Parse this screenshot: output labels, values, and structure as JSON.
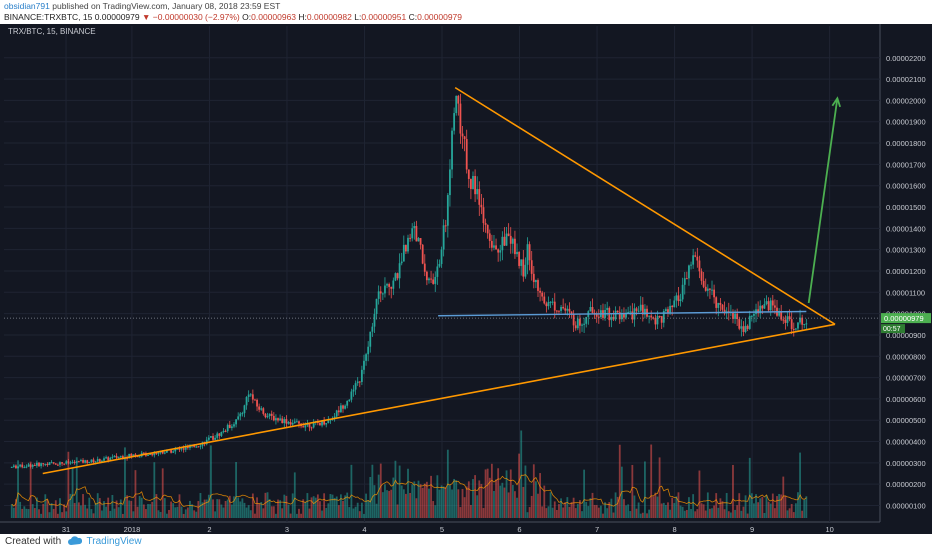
{
  "header": {
    "author": "obsidian791",
    "published": "published on TradingView.com, January 08, 2018 23:59 EST",
    "symbol": "BINANCE:TRXBTC, 15",
    "price": "0.00000979",
    "direction_glyph": "▼",
    "change": "−0.00000030 (−2.97%)",
    "o_label": "O:",
    "o_value": "0.00000963",
    "h_label": "H:",
    "h_value": "0.00000982",
    "l_label": "L:",
    "l_value": "0.00000951",
    "c_label": "C:",
    "c_value": "0.00000979"
  },
  "footer": {
    "created_with": "Created with",
    "brand": "TradingView"
  },
  "chart_data": {
    "type": "candlestick",
    "title": "TRX/BTC, 15, BINANCE",
    "ylim": [
      1e-07,
      2.25e-06
    ],
    "y_ticks": [
      1e-07,
      2e-07,
      3e-07,
      4e-07,
      5e-07,
      6e-07,
      7e-07,
      8e-07,
      9e-07,
      1e-06,
      1.1e-06,
      1.2e-06,
      1.3e-06,
      1.4e-06,
      1.5e-06,
      1.6e-06,
      1.7e-06,
      1.8e-06,
      1.9e-06,
      2e-06,
      2.1e-06,
      2.2e-06
    ],
    "y_tick_labels": [
      "0.00000100",
      "0.00000200",
      "0.00000300",
      "0.00000400",
      "0.00000500",
      "0.00000600",
      "0.00000700",
      "0.00000800",
      "0.00000900",
      "0.00001000",
      "0.00001100",
      "0.00001200",
      "0.00001300",
      "0.00001400",
      "0.00001500",
      "0.00001600",
      "0.00001700",
      "0.00001800",
      "0.00001900",
      "0.00002000",
      "0.00002100",
      "0.00002200"
    ],
    "x_labels": [
      "31",
      "2018",
      "2",
      "3",
      "4",
      "5",
      "6",
      "7",
      "8",
      "9",
      "10"
    ],
    "x_label_days": [
      -0.2,
      0.65,
      1.65,
      2.65,
      3.65,
      4.65,
      5.65,
      6.65,
      7.65,
      8.65,
      9.65
    ],
    "x_day_range": [
      -1.0,
      10.3
    ],
    "last_price_label": "0.00000979",
    "countdown_label": "00:57",
    "price_path": [
      [
        -0.9,
        2.8e-07
      ],
      [
        -0.5,
        2.95e-07
      ],
      [
        -0.2,
        3e-07
      ],
      [
        0.2,
        3.1e-07
      ],
      [
        0.5,
        3.3e-07
      ],
      [
        0.8,
        3.4e-07
      ],
      [
        1.1,
        3.55e-07
      ],
      [
        1.4,
        3.7e-07
      ],
      [
        1.6,
        4e-07
      ],
      [
        1.8,
        4.4e-07
      ],
      [
        2.0,
        5e-07
      ],
      [
        2.1,
        5.6e-07
      ],
      [
        2.15,
        6.4e-07
      ],
      [
        2.25,
        5.7e-07
      ],
      [
        2.4,
        5.2e-07
      ],
      [
        2.6,
        5e-07
      ],
      [
        2.8,
        4.8e-07
      ],
      [
        3.0,
        4.8e-07
      ],
      [
        3.2,
        5e-07
      ],
      [
        3.35,
        5.6e-07
      ],
      [
        3.5,
        6.3e-07
      ],
      [
        3.6,
        7e-07
      ],
      [
        3.7,
        8.5e-07
      ],
      [
        3.8,
        1.05e-06
      ],
      [
        3.9,
        1.12e-06
      ],
      [
        4.0,
        1.15e-06
      ],
      [
        4.1,
        1.2e-06
      ],
      [
        4.2,
        1.35e-06
      ],
      [
        4.3,
        1.4e-06
      ],
      [
        4.4,
        1.25e-06
      ],
      [
        4.5,
        1.12e-06
      ],
      [
        4.6,
        1.2e-06
      ],
      [
        4.7,
        1.45e-06
      ],
      [
        4.78,
        1.85e-06
      ],
      [
        4.82,
        2.05e-06
      ],
      [
        4.9,
        1.85e-06
      ],
      [
        5.0,
        1.65e-06
      ],
      [
        5.1,
        1.55e-06
      ],
      [
        5.2,
        1.4e-06
      ],
      [
        5.3,
        1.28e-06
      ],
      [
        5.4,
        1.32e-06
      ],
      [
        5.5,
        1.38e-06
      ],
      [
        5.6,
        1.28e-06
      ],
      [
        5.7,
        1.2e-06
      ],
      [
        5.75,
        1.32e-06
      ],
      [
        5.82,
        1.18e-06
      ],
      [
        5.9,
        1.08e-06
      ],
      [
        6.0,
        1.05e-06
      ],
      [
        6.2,
        1.03e-06
      ],
      [
        6.4,
        9.5e-07
      ],
      [
        6.6,
        1.02e-06
      ],
      [
        6.8,
        1e-06
      ],
      [
        7.0,
        9.8e-07
      ],
      [
        7.2,
        1.02e-06
      ],
      [
        7.4,
        9.7e-07
      ],
      [
        7.6,
        1.01e-06
      ],
      [
        7.75,
        1.1e-06
      ],
      [
        7.9,
        1.28e-06
      ],
      [
        8.0,
        1.15e-06
      ],
      [
        8.2,
        1.05e-06
      ],
      [
        8.4,
        1e-06
      ],
      [
        8.55,
        9.2e-07
      ],
      [
        8.7,
        1.02e-06
      ],
      [
        8.85,
        1.05e-06
      ],
      [
        9.0,
        1e-06
      ],
      [
        9.1,
        9.6e-07
      ],
      [
        9.25,
        9.5e-07
      ],
      [
        9.35,
        9.8e-07
      ]
    ],
    "annotations": {
      "resistance": [
        [
          4.82,
          2.06e-06
        ],
        [
          9.72,
          9.5e-07
        ]
      ],
      "support": [
        [
          -0.5,
          2.5e-07
        ],
        [
          9.72,
          9.5e-07
        ]
      ],
      "horizontal": [
        [
          4.6,
          9.9e-07
        ],
        [
          9.35,
          1.01e-06
        ]
      ],
      "arrow": [
        [
          9.38,
          1.05e-06
        ],
        [
          9.75,
          2.01e-06
        ]
      ]
    },
    "colors": {
      "background": "#131722",
      "up_candle": "#26a69a",
      "down_candle": "#ef5350",
      "trendline": "#ff9800",
      "horizontal_line": "#5b9bd5",
      "arrow": "#4caf50",
      "volume_ma": "#ff9800",
      "last_price_bg": "#4caf50"
    }
  }
}
